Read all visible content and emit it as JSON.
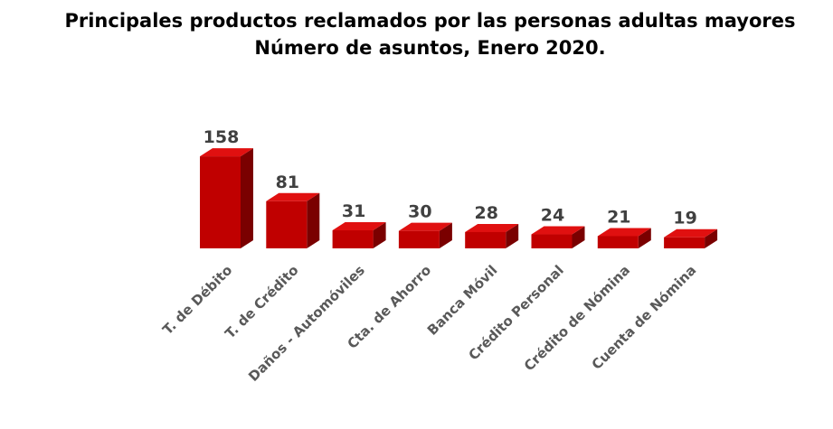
{
  "chart_data": {
    "type": "bar",
    "title_line1": "Principales productos reclamados por las personas adultas mayores",
    "title_line2": "Número de asuntos, Enero 2020.",
    "categories": [
      "T. de Débito",
      "T. de Crédito",
      "Daños - Automóviles",
      "Cta. de Ahorro",
      "Banca Móvil",
      "Crédito Personal",
      "Crédito de Nómina",
      "Cuenta de Nómina"
    ],
    "values": [
      158,
      81,
      31,
      30,
      28,
      24,
      21,
      19
    ],
    "xlabel": "",
    "ylabel": "",
    "grid": false,
    "legend": "none",
    "style": "3d-column"
  },
  "colors": {
    "bar_front": "#c00000",
    "bar_side": "#7a0000",
    "bar_top": "#e01010",
    "value_label": "#404040",
    "category_label": "#595959"
  }
}
